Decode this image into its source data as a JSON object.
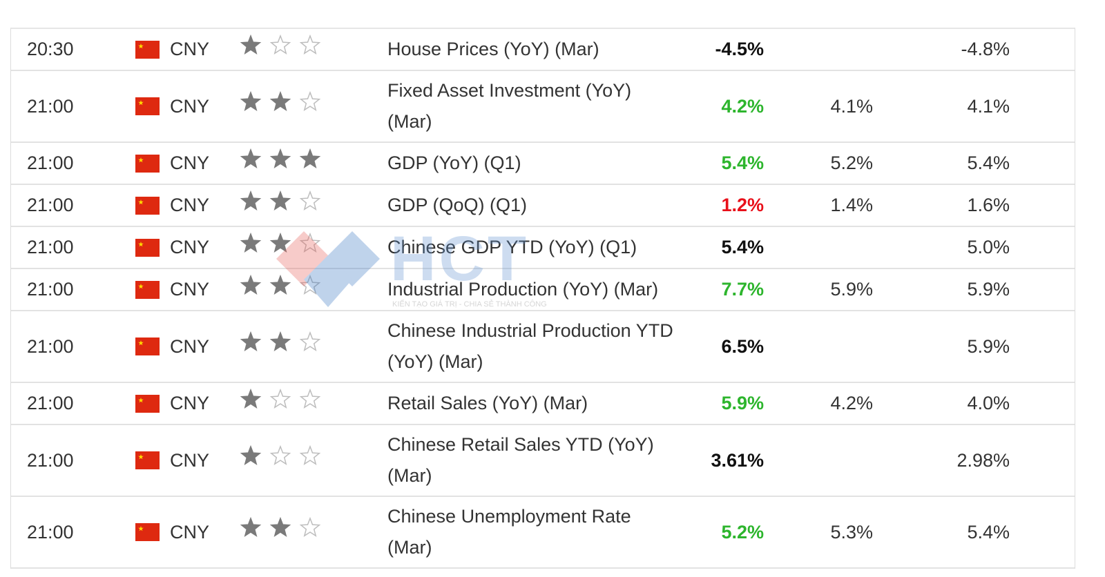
{
  "watermark": {
    "logo": "HCT",
    "slogan": "KIẾN TẠO GIÁ TRỊ - CHIA SẺ THÀNH CÔNG"
  },
  "table": {
    "rows": [
      {
        "time": "20:30",
        "currency": "CNY",
        "importance": 1,
        "event": "House Prices (YoY) (Mar)",
        "actual": "-4.5%",
        "actual_color": "#111111",
        "forecast": null,
        "previous": "-4.8%"
      },
      {
        "time": "21:00",
        "currency": "CNY",
        "importance": 2,
        "event": "Fixed Asset Investment (YoY) (Mar)",
        "actual": "4.2%",
        "actual_color": "#2db52d",
        "forecast": "4.1%",
        "previous": "4.1%"
      },
      {
        "time": "21:00",
        "currency": "CNY",
        "importance": 3,
        "event": "GDP (YoY) (Q1)",
        "actual": "5.4%",
        "actual_color": "#2db52d",
        "forecast": "5.2%",
        "previous": "5.4%"
      },
      {
        "time": "21:00",
        "currency": "CNY",
        "importance": 2,
        "event": "GDP (QoQ) (Q1)",
        "actual": "1.2%",
        "actual_color": "#e8101a",
        "forecast": "1.4%",
        "previous": "1.6%"
      },
      {
        "time": "21:00",
        "currency": "CNY",
        "importance": 2,
        "event": "Chinese GDP YTD (YoY) (Q1)",
        "actual": "5.4%",
        "actual_color": "#111111",
        "forecast": null,
        "previous": "5.0%"
      },
      {
        "time": "21:00",
        "currency": "CNY",
        "importance": 2,
        "event": "Industrial Production (YoY) (Mar)",
        "actual": "7.7%",
        "actual_color": "#2db52d",
        "forecast": "5.9%",
        "previous": "5.9%"
      },
      {
        "time": "21:00",
        "currency": "CNY",
        "importance": 2,
        "event": "Chinese Industrial Production YTD (YoY) (Mar)",
        "actual": "6.5%",
        "actual_color": "#111111",
        "forecast": null,
        "previous": "5.9%"
      },
      {
        "time": "21:00",
        "currency": "CNY",
        "importance": 1,
        "event": "Retail Sales (YoY) (Mar)",
        "actual": "5.9%",
        "actual_color": "#2db52d",
        "forecast": "4.2%",
        "previous": "4.0%"
      },
      {
        "time": "21:00",
        "currency": "CNY",
        "importance": 1,
        "event": "Chinese Retail Sales YTD (YoY) (Mar)",
        "actual": "3.61%",
        "actual_color": "#111111",
        "forecast": null,
        "previous": "2.98%"
      },
      {
        "time": "21:00",
        "currency": "CNY",
        "importance": 2,
        "event": "Chinese Unemployment Rate (Mar)",
        "actual": "5.2%",
        "actual_color": "#2db52d",
        "forecast": "5.3%",
        "previous": "5.4%"
      }
    ]
  }
}
